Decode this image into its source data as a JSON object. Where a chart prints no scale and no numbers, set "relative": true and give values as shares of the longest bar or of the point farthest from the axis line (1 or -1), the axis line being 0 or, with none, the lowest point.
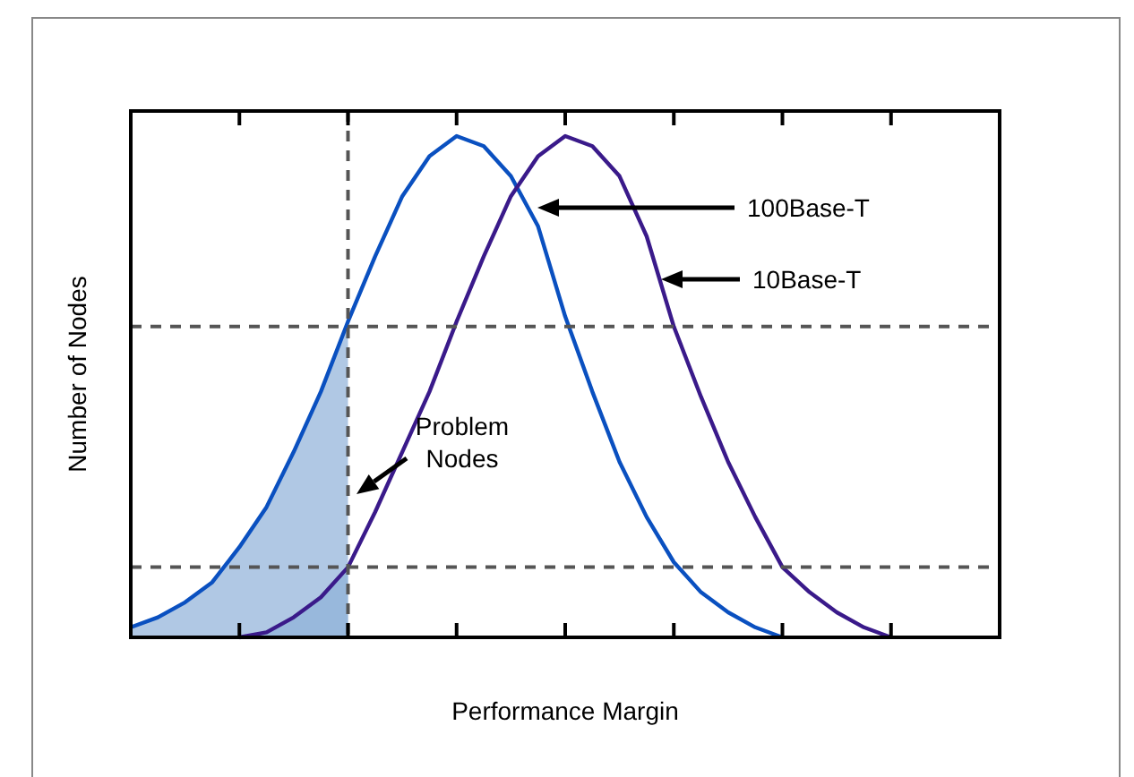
{
  "chart_data": {
    "type": "line",
    "relative": true,
    "xlabel": "Performance Margin",
    "ylabel": "Number of Nodes",
    "categories": [
      null,
      null,
      null,
      null,
      null,
      null,
      null,
      null,
      null,
      null,
      null,
      null,
      null,
      null,
      null,
      null,
      null,
      null,
      null,
      null,
      null,
      null,
      null,
      null,
      null,
      null,
      null,
      null,
      null,
      null,
      null,
      null,
      null
    ],
    "marker": "none",
    "line_style": "solid",
    "series": [
      {
        "color": "#0a50c0",
        "values": [
          0.02,
          0.04,
          0.07,
          0.11,
          0.18,
          0.26,
          0.37,
          0.49,
          0.63,
          0.76,
          0.88,
          0.96,
          1,
          0.98,
          0.92,
          0.82,
          0.64,
          0.49,
          0.35,
          0.24,
          0.15,
          0.09,
          0.05,
          0.02,
          0,
          null,
          null,
          null,
          null,
          null,
          null,
          null,
          null
        ]
      },
      {
        "color": "#3a1a8a",
        "values": [
          null,
          null,
          null,
          null,
          0,
          0.01,
          0.04,
          0.08,
          0.14,
          0.25,
          0.37,
          0.49,
          0.63,
          0.76,
          0.88,
          0.96,
          1,
          0.98,
          0.92,
          0.8,
          0.62,
          0.48,
          0.35,
          0.24,
          0.14,
          0.09,
          0.05,
          0.02,
          0,
          null,
          null,
          null,
          null
        ]
      }
    ],
    "ref_lines": [
      {
        "axis": "y",
        "value": 0.62,
        "color": "#555555",
        "line_style": "dashed"
      },
      {
        "axis": "y",
        "value": 0.14,
        "color": "#555555",
        "line_style": "dashed"
      }
    ],
    "annotations": [
      "100Base-T",
      "10Base-T",
      "Problem\nNodes"
    ]
  }
}
